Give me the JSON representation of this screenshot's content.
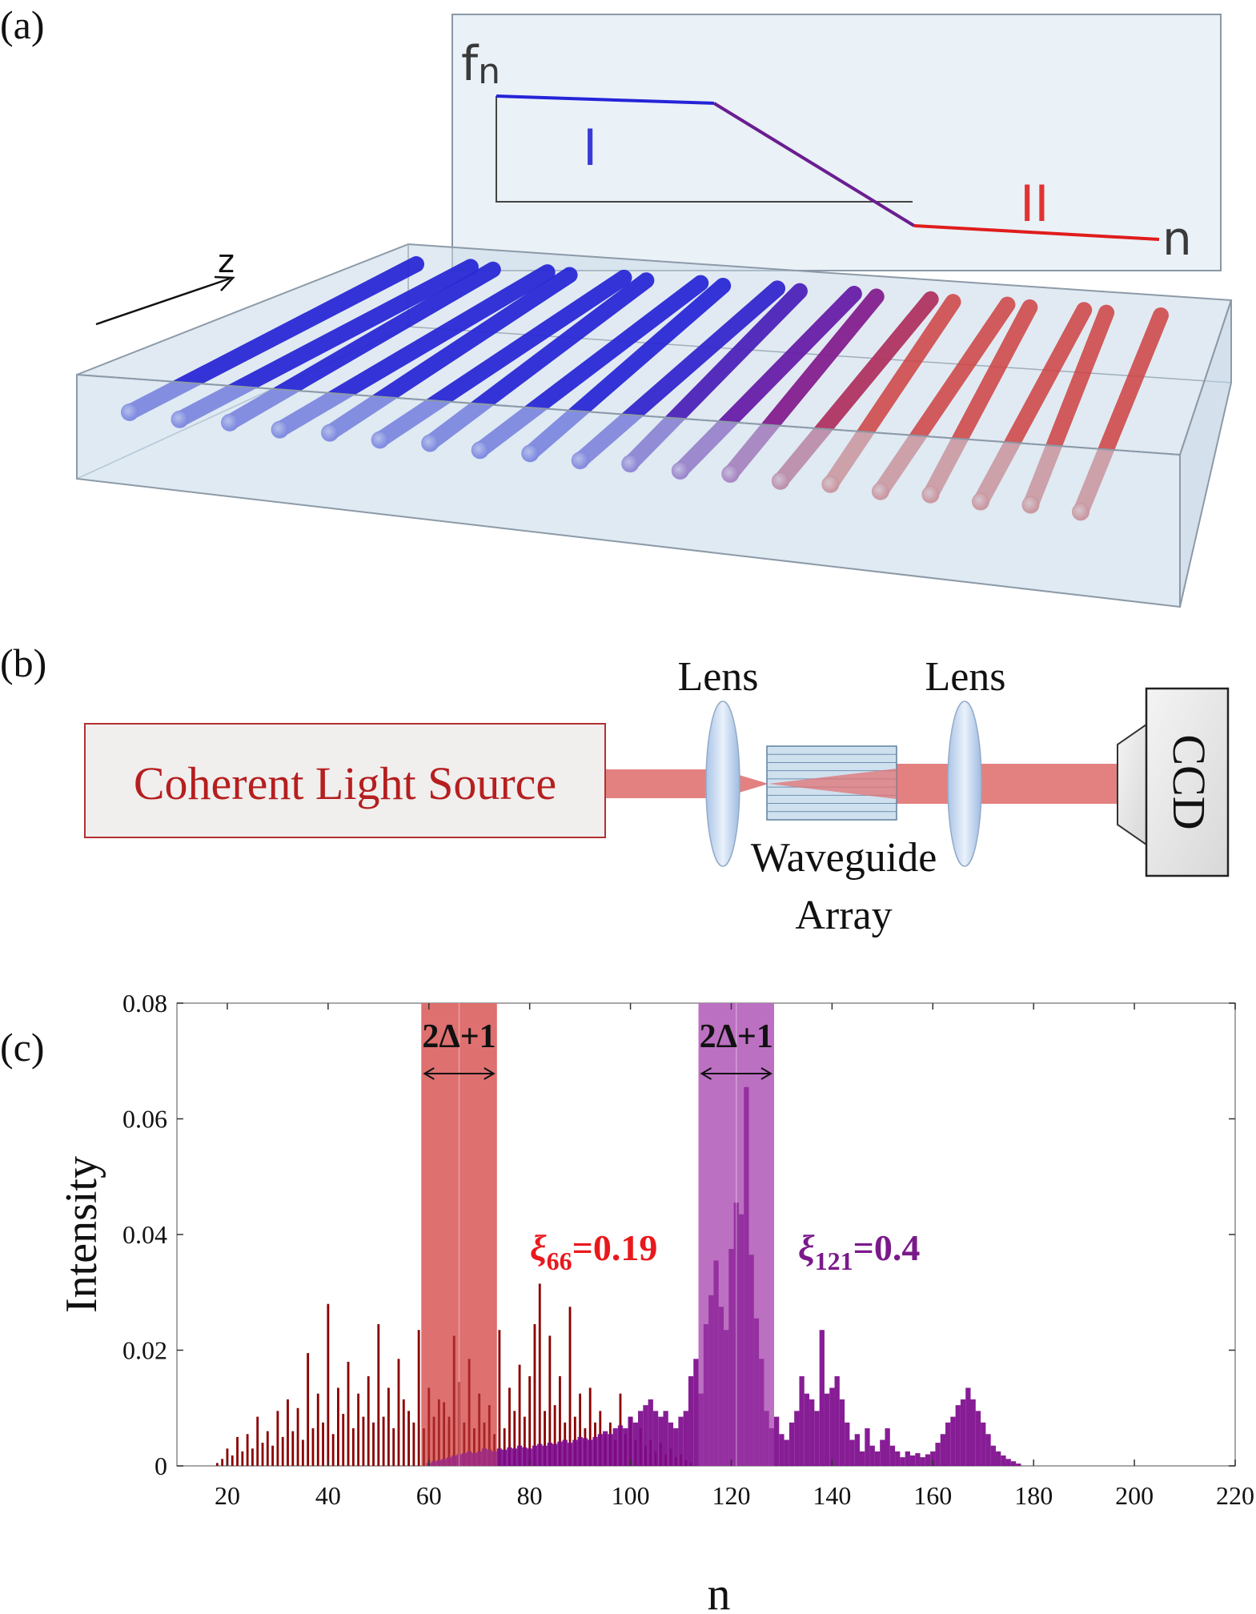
{
  "panels": {
    "a": "(a)",
    "b": "(b)",
    "c": "(c)"
  },
  "panel_a": {
    "profile_ylabel": "f",
    "profile_ysub": "n",
    "profile_xlabel": "n",
    "region_1": "I",
    "region_2": "II",
    "z_label": "z",
    "waveguide_count": 20
  },
  "panel_b": {
    "source_label": "Coherent Light Source",
    "lens_label_left": "Lens",
    "lens_label_right": "Lens",
    "array_label_line1": "Waveguide",
    "array_label_line2": "Array",
    "detector_label": "CCD"
  },
  "colors": {
    "blue": "#2a2ad6",
    "purple": "#7a1a9a",
    "red": "#d22b2b",
    "dark_red": "#8b0000",
    "dark_purple": "#7d0a8c",
    "red_band": "#dd6b6b",
    "purple_band": "#b96bbf",
    "slab": "#cfe0ee"
  },
  "chart_data": {
    "type": "bar",
    "xlabel": "n",
    "ylabel": "Intensity",
    "xlim": [
      10,
      220
    ],
    "ylim": [
      0,
      0.08
    ],
    "x_ticks": [
      "20",
      "40",
      "60",
      "80",
      "100",
      "120",
      "140",
      "160",
      "180",
      "200",
      "220"
    ],
    "y_ticks": [
      "0",
      "0.02",
      "0.04",
      "0.06",
      "0.08"
    ],
    "bands": [
      {
        "center": 66,
        "half_width": 7.5,
        "label": "2Δ+1",
        "annotation_symbol": "ξ",
        "annotation_sub": "66",
        "annotation_value": "=0.19",
        "color": "#dd6b6b"
      },
      {
        "center": 121,
        "half_width": 7.5,
        "label": "2Δ+1",
        "annotation_symbol": "ξ",
        "annotation_sub": "121",
        "annotation_value": "=0.4",
        "color": "#b96bbf"
      }
    ],
    "series": [
      {
        "color": "#8b0000",
        "x": [
          18,
          19,
          20,
          21,
          22,
          23,
          24,
          25,
          26,
          27,
          28,
          29,
          30,
          31,
          32,
          33,
          34,
          35,
          36,
          37,
          38,
          39,
          40,
          41,
          42,
          43,
          44,
          45,
          46,
          47,
          48,
          49,
          50,
          51,
          52,
          53,
          54,
          55,
          56,
          57,
          58,
          59,
          60,
          61,
          62,
          63,
          64,
          65,
          66,
          67,
          68,
          69,
          70,
          71,
          72,
          73,
          74,
          75,
          76,
          77,
          78,
          79,
          80,
          81,
          82,
          83,
          84,
          85,
          86,
          87,
          88,
          89,
          90,
          91,
          92,
          93,
          94,
          95,
          96,
          97,
          98,
          99,
          100,
          101,
          102,
          103,
          104,
          105,
          106,
          107,
          108,
          109,
          110,
          111,
          112
        ],
        "y": [
          0.0005,
          0.0012,
          0.003,
          0.0018,
          0.005,
          0.0025,
          0.0055,
          0.003,
          0.0085,
          0.004,
          0.006,
          0.0035,
          0.0095,
          0.005,
          0.0115,
          0.006,
          0.01,
          0.0045,
          0.0195,
          0.0065,
          0.0125,
          0.0075,
          0.028,
          0.0055,
          0.0135,
          0.009,
          0.018,
          0.0065,
          0.0125,
          0.0085,
          0.0155,
          0.0075,
          0.0245,
          0.0085,
          0.0135,
          0.0065,
          0.0185,
          0.0115,
          0.0095,
          0.0075,
          0.0235,
          0.0065,
          0.0135,
          0.0085,
          0.0115,
          0.011,
          0.0085,
          0.0225,
          0.0145,
          0.0075,
          0.0185,
          0.0065,
          0.0125,
          0.0075,
          0.0105,
          0.0055,
          0.0235,
          0.0065,
          0.0135,
          0.0095,
          0.0175,
          0.0085,
          0.0155,
          0.0245,
          0.0315,
          0.0095,
          0.0225,
          0.0105,
          0.0155,
          0.0075,
          0.0275,
          0.0085,
          0.0125,
          0.0065,
          0.0135,
          0.0075,
          0.0095,
          0.0055,
          0.0075,
          0.0045,
          0.0125,
          0.0055,
          0.0085,
          0.0045,
          0.0065,
          0.0035,
          0.0045,
          0.0025,
          0.004,
          0.002,
          0.003,
          0.0015,
          0.002,
          0.001,
          0.0005
        ]
      },
      {
        "color": "#7d0a8c",
        "x": [
          60,
          61,
          62,
          63,
          64,
          65,
          66,
          67,
          68,
          69,
          70,
          71,
          72,
          73,
          74,
          75,
          76,
          77,
          78,
          79,
          80,
          81,
          82,
          83,
          84,
          85,
          86,
          87,
          88,
          89,
          90,
          91,
          92,
          93,
          94,
          95,
          96,
          97,
          98,
          99,
          100,
          101,
          102,
          103,
          104,
          105,
          106,
          107,
          108,
          109,
          110,
          111,
          112,
          113,
          114,
          115,
          116,
          117,
          118,
          119,
          120,
          121,
          122,
          123,
          124,
          125,
          126,
          127,
          128,
          129,
          130,
          131,
          132,
          133,
          134,
          135,
          136,
          137,
          138,
          139,
          140,
          141,
          142,
          143,
          144,
          145,
          146,
          147,
          148,
          149,
          150,
          151,
          152,
          153,
          154,
          155,
          156,
          157,
          158,
          159,
          160,
          161,
          162,
          163,
          164,
          165,
          166,
          167,
          168,
          169,
          170,
          171,
          172,
          173,
          174,
          175,
          176,
          177
        ],
        "y": [
          0.0005,
          0.0008,
          0.001,
          0.0012,
          0.0015,
          0.0018,
          0.002,
          0.0022,
          0.0025,
          0.0022,
          0.0025,
          0.003,
          0.0028,
          0.0025,
          0.003,
          0.0028,
          0.0032,
          0.003,
          0.0035,
          0.0032,
          0.003,
          0.0035,
          0.0038,
          0.0035,
          0.004,
          0.0038,
          0.0042,
          0.0045,
          0.004,
          0.0045,
          0.005,
          0.0048,
          0.0045,
          0.005,
          0.0055,
          0.006,
          0.0055,
          0.0065,
          0.007,
          0.0065,
          0.0085,
          0.0075,
          0.0095,
          0.0105,
          0.0115,
          0.0095,
          0.0085,
          0.0095,
          0.0075,
          0.0065,
          0.0085,
          0.0095,
          0.0155,
          0.0185,
          0.0125,
          0.0245,
          0.0295,
          0.0355,
          0.0275,
          0.0235,
          0.0375,
          0.0455,
          0.0435,
          0.0655,
          0.0365,
          0.0255,
          0.0185,
          0.0095,
          0.0065,
          0.0085,
          0.0055,
          0.0045,
          0.0075,
          0.0095,
          0.0155,
          0.0125,
          0.0115,
          0.0095,
          0.0235,
          0.0125,
          0.0135,
          0.0155,
          0.0115,
          0.0075,
          0.0045,
          0.0055,
          0.0025,
          0.0065,
          0.0035,
          0.0025,
          0.0045,
          0.0065,
          0.0035,
          0.0025,
          0.0015,
          0.0025,
          0.0018,
          0.0022,
          0.0015,
          0.002,
          0.0025,
          0.004,
          0.0055,
          0.0075,
          0.0085,
          0.0105,
          0.0115,
          0.0135,
          0.0115,
          0.0095,
          0.0075,
          0.0055,
          0.0035,
          0.0025,
          0.0018,
          0.0012,
          0.0008,
          0.0004
        ]
      }
    ]
  }
}
